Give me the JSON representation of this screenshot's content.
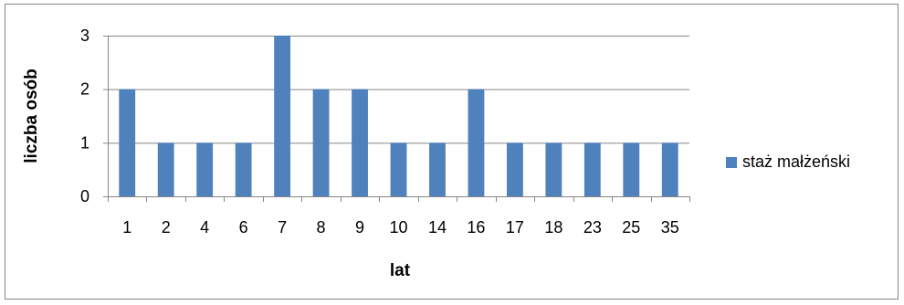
{
  "chart_data": {
    "type": "bar",
    "categories": [
      "1",
      "2",
      "4",
      "6",
      "7",
      "8",
      "9",
      "10",
      "14",
      "16",
      "17",
      "18",
      "23",
      "25",
      "35"
    ],
    "series": [
      {
        "name": "staż małżeński",
        "values": [
          2,
          1,
          1,
          1,
          3,
          2,
          2,
          1,
          1,
          2,
          1,
          1,
          1,
          1,
          1
        ],
        "color": "#4F81BD"
      }
    ],
    "xlabel": "lat",
    "ylabel": "liczba osób",
    "ylim": [
      0,
      3
    ],
    "yticks": [
      0,
      1,
      2,
      3
    ],
    "grid": true,
    "legend_position": "right"
  }
}
